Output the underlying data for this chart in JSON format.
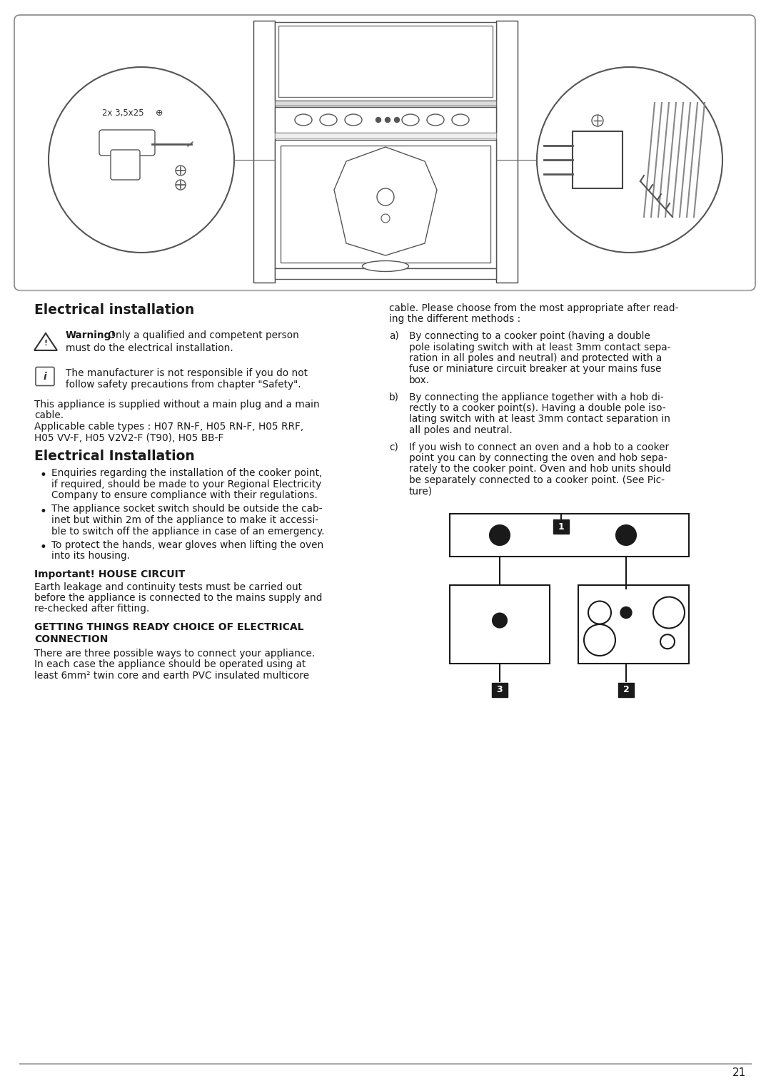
{
  "page_bg": "#ffffff",
  "text_color": "#1a1a1a",
  "page_number": "21",
  "title1": "Electrical installation",
  "title2": "Electrical Installation",
  "title3": "Important! HOUSE CIRCUIT",
  "title4_line1": "GETTING THINGS READY CHOICE OF ELECTRICAL",
  "title4_line2": "CONNECTION",
  "warning_bold": "Warning!",
  "warning_rest": " Only a qualified and competent person",
  "warning_line2": "must do the electrical installation.",
  "info_line1": "The manufacturer is not responsible if you do not",
  "info_line2": "follow safety precautions from chapter \"Safety\".",
  "para1_lines": [
    "This appliance is supplied without a main plug and a main",
    "cable.",
    "Applicable cable types : H07 RN-F, H05 RN-F, H05 RRF,",
    "H05 VV-F, H05 V2V2-F (T90), H05 BB-F"
  ],
  "bullet1_lines": [
    "Enquiries regarding the installation of the cooker point,",
    "if required, should be made to your Regional Electricity",
    "Company to ensure compliance with their regulations."
  ],
  "bullet2_lines": [
    "The appliance socket switch should be outside the cab-",
    "inet but within 2m of the appliance to make it accessi-",
    "ble to switch off the appliance in case of an emergency."
  ],
  "bullet3_lines": [
    "To protect the hands, wear gloves when lifting the oven",
    "into its housing."
  ],
  "important_lines": [
    "Earth leakage and continuity tests must be carried out",
    "before the appliance is connected to the mains supply and",
    "re-checked after fitting."
  ],
  "connection_lines": [
    "There are three possible ways to connect your appliance.",
    "In each case the appliance should be operated using at",
    "least 6mm² twin core and earth PVC insulated multicore"
  ],
  "right_intro_lines": [
    "cable. Please choose from the most appropriate after read-",
    "ing the different methods :"
  ],
  "item_a_label": "a)",
  "item_a_lines": [
    "By connecting to a cooker point (having a double",
    "pole isolating switch with at least 3mm contact sepa-",
    "ration in all poles and neutral) and protected with a",
    "fuse or miniature circuit breaker at your mains fuse",
    "box."
  ],
  "item_b_label": "b)",
  "item_b_lines": [
    "By connecting the appliance together with a hob di-",
    "rectly to a cooker point(s). Having a double pole iso-",
    "lating switch with at least 3mm contact separation in",
    "all poles and neutral."
  ],
  "item_c_label": "c)",
  "item_c_lines": [
    "If you wish to connect an oven and a hob to a cooker",
    "point you can by connecting the oven and hob sepa-",
    "rately to the cooker point. Oven and hob units should",
    "be separately connected to a cooker point. (See Pic-",
    "ture)"
  ]
}
